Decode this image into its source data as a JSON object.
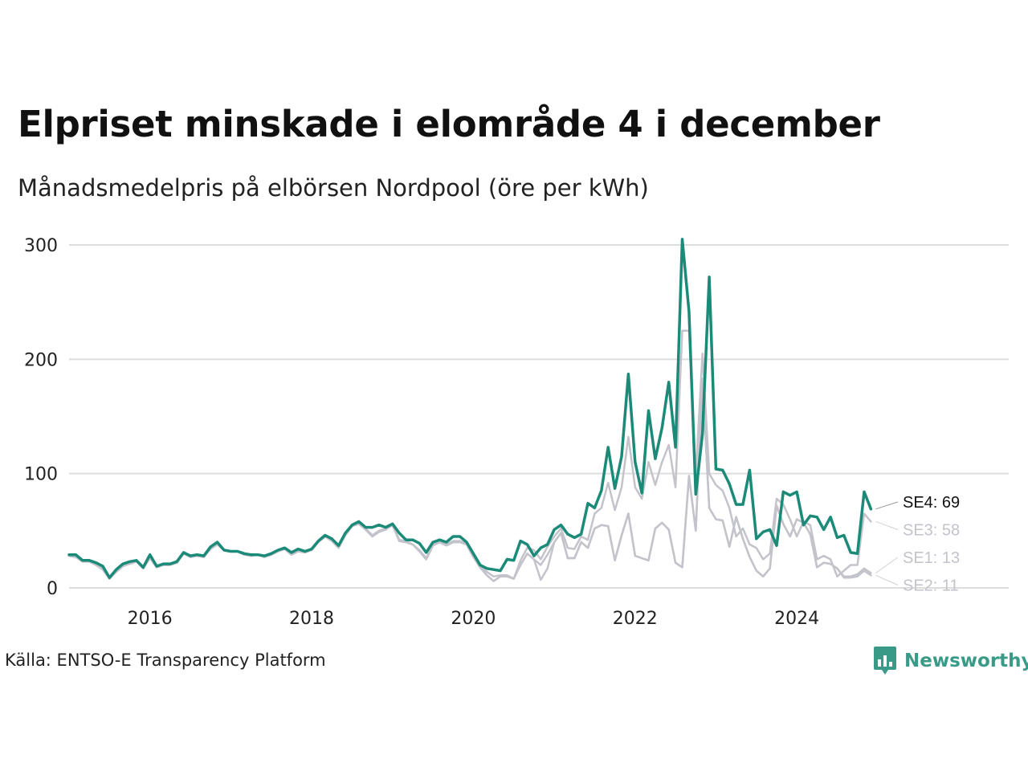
{
  "title": "Elpriset minskade i elområde 4 i december",
  "subtitle": "Månadsmedelpris på elbörsen Nordpool (öre per kWh)",
  "source": "Källa: ENTSO-E Transparency Platform",
  "brand": {
    "name": "Newsworthy",
    "icon": "bar-chart-speech-bubble-icon",
    "color": "#3a9a88"
  },
  "chart_data": {
    "type": "line",
    "title": "",
    "xlabel": "",
    "ylabel": "",
    "x_start": "2015-01",
    "x_end": "2024-12",
    "x_ticks": [
      2016,
      2018,
      2020,
      2022,
      2024
    ],
    "ylim": [
      0,
      300
    ],
    "y_ticks": [
      0,
      100,
      200,
      300
    ],
    "grid": "horizontal",
    "colors": {
      "highlight": "#1b8a78",
      "muted": "#c3c3cb",
      "grid": "#dddddd",
      "label_highlight": "#111111",
      "label_muted": "#c3c3cb"
    },
    "series": [
      {
        "name": "SE1",
        "label": "SE1: 13",
        "highlight": false,
        "values": [
          28,
          27,
          23,
          23,
          20,
          16,
          8,
          14,
          19,
          21,
          23,
          17,
          26,
          18,
          20,
          20,
          22,
          30,
          27,
          28,
          27,
          34,
          38,
          33,
          32,
          32,
          29,
          28,
          29,
          27,
          29,
          32,
          34,
          29,
          32,
          31,
          33,
          40,
          45,
          41,
          35,
          46,
          54,
          56,
          51,
          45,
          49,
          51,
          55,
          41,
          40,
          38,
          32,
          25,
          37,
          40,
          37,
          40,
          40,
          38,
          27,
          18,
          11,
          6,
          10,
          10,
          8,
          20,
          30,
          25,
          20,
          29,
          40,
          48,
          26,
          26,
          40,
          35,
          52,
          55,
          54,
          24,
          46,
          65,
          28,
          26,
          24,
          52,
          57,
          51,
          22,
          18,
          98,
          50,
          183,
          70,
          60,
          59,
          36,
          62,
          43,
          27,
          15,
          10,
          17,
          72,
          56,
          45,
          60,
          57,
          47,
          18,
          22,
          21,
          17,
          10,
          10,
          12,
          17,
          13
        ]
      },
      {
        "name": "SE2",
        "label": "SE2: 11",
        "highlight": false,
        "values": [
          28,
          27,
          23,
          23,
          20,
          16,
          8,
          14,
          19,
          21,
          23,
          17,
          26,
          18,
          20,
          20,
          22,
          30,
          27,
          28,
          27,
          34,
          38,
          33,
          32,
          32,
          29,
          28,
          29,
          27,
          29,
          32,
          34,
          29,
          32,
          31,
          33,
          40,
          45,
          41,
          35,
          46,
          54,
          56,
          51,
          45,
          49,
          51,
          55,
          41,
          40,
          38,
          32,
          25,
          37,
          40,
          37,
          40,
          40,
          38,
          27,
          18,
          11,
          6,
          10,
          10,
          8,
          20,
          30,
          25,
          7,
          17,
          40,
          48,
          26,
          26,
          40,
          35,
          52,
          55,
          54,
          24,
          46,
          65,
          28,
          26,
          24,
          52,
          57,
          51,
          22,
          18,
          98,
          50,
          183,
          70,
          60,
          59,
          36,
          62,
          43,
          27,
          15,
          10,
          17,
          72,
          56,
          45,
          60,
          57,
          47,
          18,
          22,
          21,
          17,
          9,
          9,
          10,
          15,
          11
        ]
      },
      {
        "name": "SE3",
        "label": "SE3: 58",
        "highlight": false,
        "values": [
          28,
          28,
          24,
          24,
          21,
          17,
          8,
          15,
          20,
          22,
          23,
          18,
          27,
          19,
          20,
          21,
          22,
          30,
          28,
          29,
          28,
          35,
          39,
          33,
          32,
          32,
          30,
          29,
          29,
          27,
          30,
          33,
          35,
          30,
          33,
          32,
          34,
          41,
          45,
          42,
          36,
          47,
          55,
          57,
          52,
          46,
          50,
          52,
          56,
          42,
          41,
          38,
          33,
          26,
          38,
          41,
          38,
          41,
          41,
          39,
          28,
          19,
          14,
          10,
          11,
          11,
          8,
          24,
          35,
          33,
          25,
          36,
          45,
          52,
          35,
          34,
          45,
          42,
          65,
          70,
          92,
          68,
          88,
          132,
          88,
          78,
          110,
          90,
          110,
          125,
          88,
          225,
          225,
          98,
          205,
          100,
          90,
          85,
          70,
          45,
          52,
          38,
          35,
          25,
          30,
          78,
          73,
          60,
          45,
          58,
          55,
          25,
          28,
          25,
          10,
          15,
          20,
          20,
          65,
          58
        ]
      },
      {
        "name": "SE4",
        "label": "SE4: 69",
        "highlight": true,
        "values": [
          29,
          29,
          24,
          24,
          22,
          19,
          9,
          16,
          21,
          23,
          24,
          18,
          29,
          19,
          21,
          21,
          23,
          31,
          28,
          29,
          28,
          36,
          40,
          33,
          32,
          32,
          30,
          29,
          29,
          28,
          30,
          33,
          35,
          31,
          34,
          32,
          34,
          41,
          46,
          43,
          37,
          48,
          55,
          58,
          53,
          53,
          55,
          53,
          56,
          48,
          42,
          42,
          39,
          31,
          40,
          42,
          40,
          45,
          45,
          40,
          30,
          20,
          17,
          16,
          15,
          25,
          24,
          41,
          38,
          28,
          35,
          38,
          51,
          55,
          47,
          44,
          47,
          74,
          70,
          85,
          123,
          87,
          115,
          187,
          110,
          83,
          155,
          113,
          140,
          180,
          123,
          305,
          242,
          82,
          135,
          272,
          104,
          103,
          91,
          73,
          73,
          103,
          43,
          49,
          51,
          37,
          84,
          81,
          84,
          55,
          63,
          62,
          51,
          62,
          44,
          46,
          31,
          30,
          84,
          69
        ]
      }
    ]
  }
}
